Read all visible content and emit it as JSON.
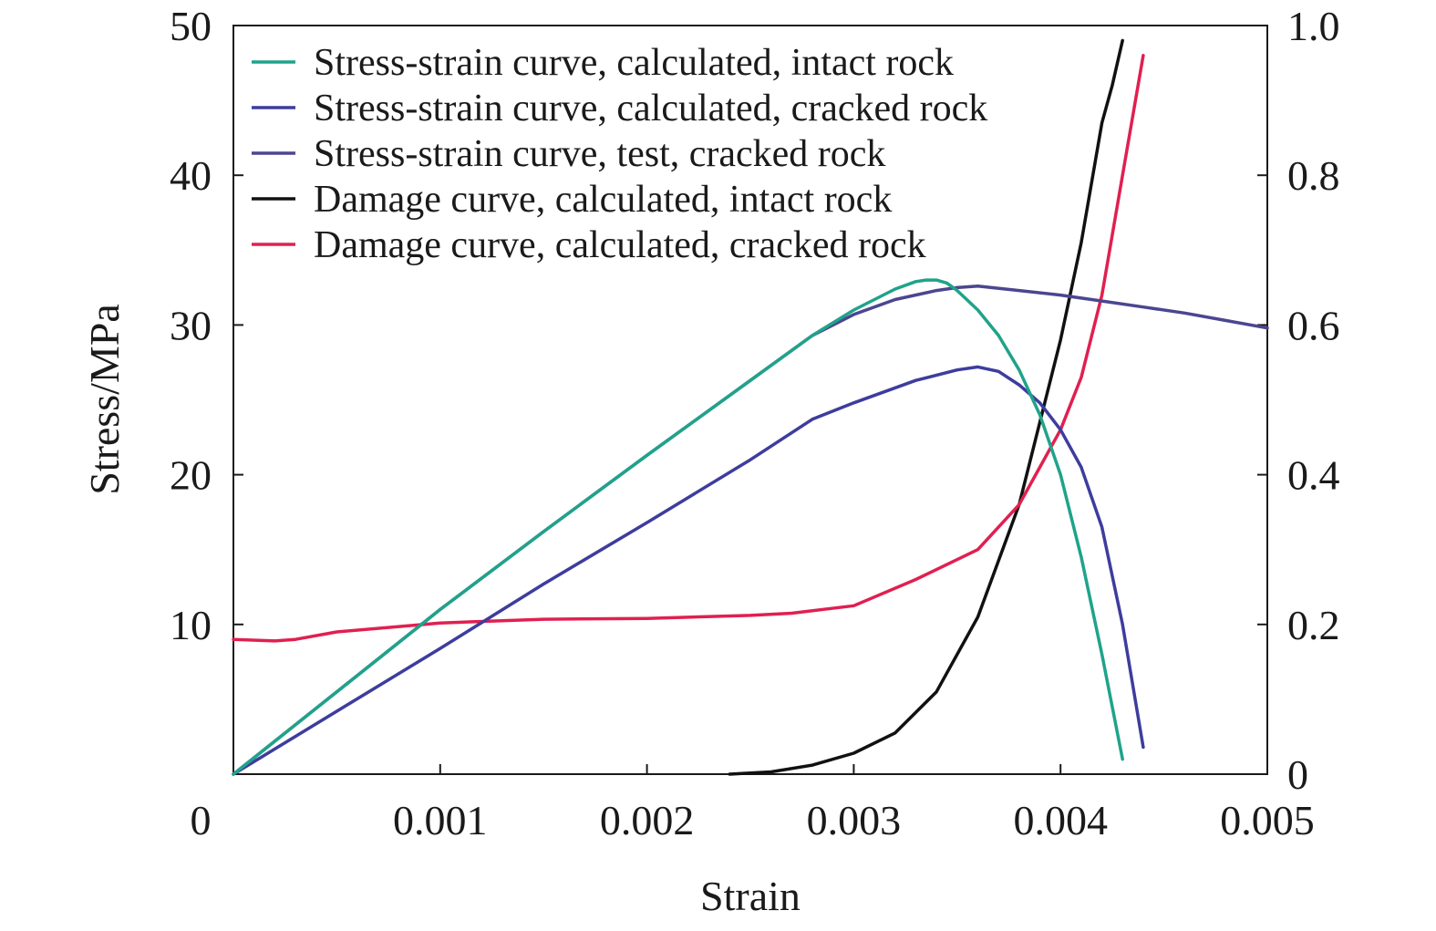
{
  "chart_data": {
    "type": "line",
    "xlabel": "Strain",
    "ylabel": "Stress/MPa",
    "xlim": [
      0,
      0.005
    ],
    "ylim": [
      0,
      50
    ],
    "y2lim": [
      0,
      1.0
    ],
    "x_ticks": [
      "0",
      "0.001",
      "0.002",
      "0.003",
      "0.004",
      "0.005"
    ],
    "y_ticks": [
      "10",
      "20",
      "30",
      "40",
      "50"
    ],
    "y2_ticks": [
      "0",
      "0.2",
      "0.4",
      "0.6",
      "0.8",
      "1.0"
    ],
    "grid": false,
    "legend_position": "top-left",
    "series": [
      {
        "name": "Stress-strain curve, calculated, intact rock",
        "color": "#1fa38a",
        "axis": "left",
        "x": [
          0,
          0.0005,
          0.001,
          0.0015,
          0.002,
          0.0025,
          0.0028,
          0.003,
          0.0032,
          0.0033,
          0.00335,
          0.0034,
          0.00345,
          0.0035,
          0.0036,
          0.0037,
          0.0038,
          0.0039,
          0.004,
          0.0041,
          0.0042,
          0.0043
        ],
        "values": [
          0,
          5.5,
          11,
          16.2,
          21.3,
          26.3,
          29.3,
          31.0,
          32.4,
          32.9,
          33.0,
          33.0,
          32.8,
          32.3,
          31.0,
          29.3,
          27.0,
          24.0,
          20.0,
          14.5,
          8.0,
          1.0
        ]
      },
      {
        "name": "Stress-strain curve, calculated, cracked rock",
        "color": "#3d3d9e",
        "axis": "left",
        "x": [
          0,
          0.0005,
          0.001,
          0.0015,
          0.002,
          0.0025,
          0.0028,
          0.003,
          0.0033,
          0.0035,
          0.0036,
          0.0037,
          0.0038,
          0.0039,
          0.004,
          0.0041,
          0.0042,
          0.0043,
          0.0044
        ],
        "values": [
          0,
          4.2,
          8.4,
          12.7,
          16.8,
          21.0,
          23.7,
          24.8,
          26.3,
          27.0,
          27.2,
          26.9,
          26.0,
          24.8,
          23.0,
          20.5,
          16.5,
          10.0,
          1.8
        ]
      },
      {
        "name": "Stress-strain curve, test, cracked rock",
        "color": "#4b4690",
        "axis": "left",
        "x": [
          0,
          0.0005,
          0.001,
          0.0015,
          0.002,
          0.0025,
          0.0028,
          0.003,
          0.0032,
          0.0034,
          0.0035,
          0.0036,
          0.0038,
          0.004,
          0.0042,
          0.0044,
          0.0046,
          0.0048,
          0.005
        ],
        "values": [
          0,
          5.5,
          11,
          16.2,
          21.3,
          26.3,
          29.3,
          30.7,
          31.7,
          32.3,
          32.5,
          32.6,
          32.3,
          32.0,
          31.6,
          31.2,
          30.8,
          30.3,
          29.8
        ]
      },
      {
        "name": "Damage curve, calculated, intact rock",
        "color": "#111111",
        "axis": "right",
        "x": [
          0.0024,
          0.0026,
          0.0028,
          0.003,
          0.0032,
          0.0034,
          0.0036,
          0.0038,
          0.0039,
          0.004,
          0.0041,
          0.0042,
          0.00425,
          0.0043
        ],
        "values": [
          0.0,
          0.003,
          0.012,
          0.028,
          0.055,
          0.11,
          0.21,
          0.36,
          0.47,
          0.58,
          0.71,
          0.87,
          0.92,
          0.98
        ]
      },
      {
        "name": "Damage curve, calculated, cracked rock",
        "color": "#e02050",
        "axis": "right",
        "x": [
          0,
          0.0002,
          0.0003,
          0.0005,
          0.001,
          0.0015,
          0.002,
          0.0025,
          0.0027,
          0.003,
          0.0033,
          0.0036,
          0.0038,
          0.0039,
          0.004,
          0.0041,
          0.0042,
          0.0043,
          0.0044
        ],
        "values": [
          0.18,
          0.178,
          0.18,
          0.19,
          0.202,
          0.207,
          0.208,
          0.212,
          0.215,
          0.225,
          0.26,
          0.3,
          0.36,
          0.41,
          0.46,
          0.53,
          0.64,
          0.8,
          0.96
        ]
      }
    ]
  }
}
